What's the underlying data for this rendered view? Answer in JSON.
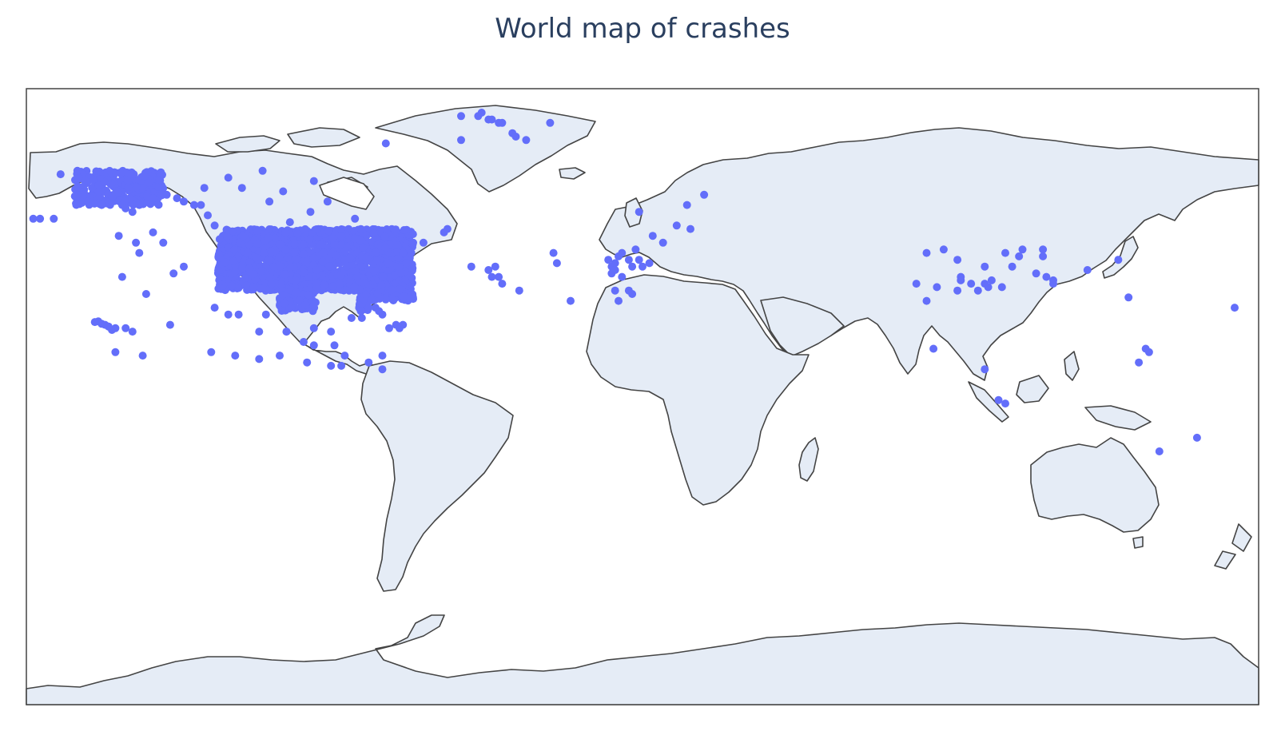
{
  "title": "World map of crashes",
  "colors": {
    "marker": "#636efa",
    "land": "#e5ecf6",
    "coast": "#444444",
    "ocean": "#ffffff",
    "frame": "#444444"
  },
  "chart_data": {
    "type": "scatter_geo",
    "projection": "equirectangular",
    "lonaxis": [
      -180,
      180
    ],
    "lataxis": [
      -90,
      90
    ],
    "clusters": [
      {
        "name": "contiguous-us",
        "lon": [
          -124,
          -67
        ],
        "lat": [
          25,
          49
        ],
        "n": 2200
      },
      {
        "name": "alaska",
        "lon": [
          -166,
          -140
        ],
        "lat": [
          56,
          66
        ],
        "n": 300
      }
    ],
    "points": [
      [
        -152,
        56
      ],
      [
        -151,
        55
      ],
      [
        -149,
        54
      ],
      [
        -147,
        56
      ],
      [
        -143,
        58
      ],
      [
        -139,
        59
      ],
      [
        -136,
        58
      ],
      [
        -134,
        57
      ],
      [
        -131,
        56
      ],
      [
        -129,
        56
      ],
      [
        -127,
        53
      ],
      [
        -125,
        50
      ],
      [
        -170,
        65
      ],
      [
        -176,
        52
      ],
      [
        -178,
        52
      ],
      [
        -172,
        52
      ],
      [
        -162,
        57
      ],
      [
        -158,
        56
      ],
      [
        -154,
        20
      ],
      [
        -155,
        19.5
      ],
      [
        -156,
        20.5
      ],
      [
        -158,
        21.3
      ],
      [
        -159,
        22
      ],
      [
        -157,
        21
      ],
      [
        -160,
        21.8
      ],
      [
        -151,
        20
      ],
      [
        -149,
        19
      ],
      [
        -154,
        13
      ],
      [
        -146,
        12
      ],
      [
        -152,
        35
      ],
      [
        -147,
        42
      ],
      [
        -140,
        45
      ],
      [
        -134,
        38
      ],
      [
        -137,
        36
      ],
      [
        -143,
        48
      ],
      [
        -145,
        30
      ],
      [
        -148,
        45
      ],
      [
        -153,
        47
      ],
      [
        -138,
        21
      ],
      [
        -125,
        26
      ],
      [
        -121,
        24
      ],
      [
        -118,
        24
      ],
      [
        -110,
        24
      ],
      [
        -112,
        19
      ],
      [
        -104,
        19
      ],
      [
        -96,
        20
      ],
      [
        -91,
        19
      ],
      [
        -85,
        23
      ],
      [
        -82,
        23
      ],
      [
        -90,
        15
      ],
      [
        -96,
        15
      ],
      [
        -99,
        16
      ],
      [
        -104,
        19
      ],
      [
        -126,
        13
      ],
      [
        -119,
        12
      ],
      [
        -112,
        11
      ],
      [
        -106,
        12
      ],
      [
        -98,
        10
      ],
      [
        -91,
        9
      ],
      [
        -87,
        12
      ],
      [
        -88,
        9
      ],
      [
        -80,
        10
      ],
      [
        -76,
        8
      ],
      [
        -76,
        12
      ],
      [
        -70,
        21
      ],
      [
        -72,
        21
      ],
      [
        -74,
        20
      ],
      [
        -76,
        24
      ],
      [
        -77,
        25
      ],
      [
        -78,
        26
      ],
      [
        -80,
        26
      ],
      [
        -71,
        20
      ],
      [
        -128,
        61
      ],
      [
        -117,
        61
      ],
      [
        -109,
        57
      ],
      [
        -103,
        51
      ],
      [
        -97,
        54
      ],
      [
        -92,
        57
      ],
      [
        -88,
        47
      ],
      [
        -84,
        52
      ],
      [
        -75,
        74
      ],
      [
        -105,
        60
      ],
      [
        -121,
        64
      ],
      [
        -111,
        66
      ],
      [
        -96,
        63
      ],
      [
        -57,
        49
      ],
      [
        -58,
        48
      ],
      [
        -64,
        45
      ],
      [
        -67,
        45
      ],
      [
        -70,
        42
      ],
      [
        -69,
        39
      ],
      [
        -71,
        38
      ],
      [
        -53,
        82
      ],
      [
        -48,
        82
      ],
      [
        -47,
        83
      ],
      [
        -45,
        81
      ],
      [
        -44,
        81
      ],
      [
        -42,
        80
      ],
      [
        -41,
        80
      ],
      [
        -38,
        77
      ],
      [
        -37,
        76
      ],
      [
        -34,
        75
      ],
      [
        -27,
        80
      ],
      [
        -53,
        75
      ],
      [
        -50,
        38
      ],
      [
        -45,
        37
      ],
      [
        -43,
        38
      ],
      [
        -42,
        35
      ],
      [
        -44,
        35
      ],
      [
        -41,
        33
      ],
      [
        -36,
        31
      ],
      [
        -25,
        39
      ],
      [
        -21,
        28
      ],
      [
        -26,
        42
      ],
      [
        -10,
        40
      ],
      [
        -9,
        38
      ],
      [
        -8,
        39
      ],
      [
        -7,
        41
      ],
      [
        -6,
        42
      ],
      [
        -4,
        40
      ],
      [
        -3,
        38
      ],
      [
        -2,
        43
      ],
      [
        -1,
        40
      ],
      [
        0,
        38
      ],
      [
        2,
        39
      ],
      [
        -9,
        36
      ],
      [
        -8,
        37
      ],
      [
        -6,
        35
      ],
      [
        -7,
        28
      ],
      [
        -4,
        31
      ],
      [
        -3,
        30
      ],
      [
        -8,
        31
      ],
      [
        6,
        45
      ],
      [
        10,
        50
      ],
      [
        13,
        56
      ],
      [
        18,
        59
      ],
      [
        14,
        49
      ],
      [
        -1,
        54
      ],
      [
        3,
        47
      ],
      [
        80,
        33
      ],
      [
        83,
        42
      ],
      [
        88,
        43
      ],
      [
        92,
        40
      ],
      [
        100,
        38
      ],
      [
        106,
        42
      ],
      [
        110,
        41
      ],
      [
        111,
        43
      ],
      [
        117,
        41
      ],
      [
        117,
        43
      ],
      [
        108,
        38
      ],
      [
        118,
        35
      ],
      [
        120,
        34
      ],
      [
        120,
        33
      ],
      [
        115,
        36
      ],
      [
        105,
        32
      ],
      [
        102,
        34
      ],
      [
        101,
        32
      ],
      [
        100,
        33
      ],
      [
        98,
        31
      ],
      [
        96,
        33
      ],
      [
        92,
        31
      ],
      [
        93,
        34
      ],
      [
        93,
        35
      ],
      [
        86,
        32
      ],
      [
        83,
        28
      ],
      [
        85,
        14
      ],
      [
        100,
        8
      ],
      [
        104,
        -1
      ],
      [
        106,
        -2
      ],
      [
        130,
        37
      ],
      [
        142,
        29
      ],
      [
        162,
        -12
      ],
      [
        151,
        -16
      ],
      [
        148,
        13
      ],
      [
        145,
        10
      ],
      [
        147,
        14
      ],
      [
        139,
        40
      ],
      [
        173,
        26
      ]
    ]
  }
}
